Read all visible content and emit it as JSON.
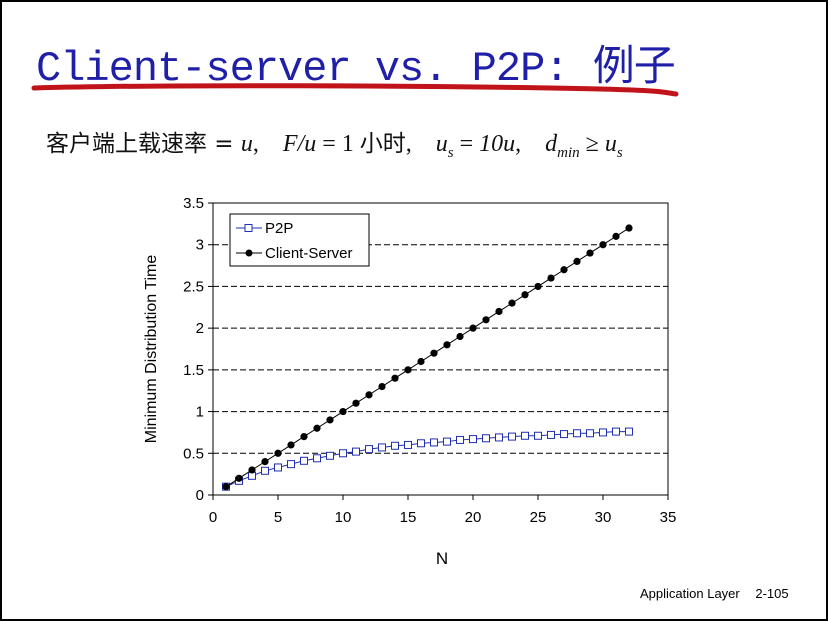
{
  "slide": {
    "title": "Client-server vs. P2P: 例子",
    "subtitle": {
      "t1": "客户端上载速率 = ",
      "u1": "u",
      "t2": ",",
      "f": "F/u",
      "t3": " = 1 ",
      "zh_hour": "小时",
      "t4": ",",
      "us": "u",
      "us_sub": "s",
      "t5": " = ",
      "tenu": "10u",
      "t6": ",",
      "d": "d",
      "d_sub": "min",
      "geq": " ≥ ",
      "us2": "u",
      "us2_sub": "s"
    },
    "footer": {
      "left": "Application Layer",
      "right": "2-105"
    },
    "colors": {
      "title": "#1f1fa8",
      "underline": "#c0141a",
      "p2p": "#1f2fb0",
      "cs": "#000000"
    }
  },
  "chart_data": {
    "type": "line",
    "xlabel": "N",
    "ylabel": "Minimum Distribution Time",
    "xlim": [
      0,
      35
    ],
    "ylim": [
      0,
      3.5
    ],
    "xticks": [
      "0",
      "5",
      "10",
      "15",
      "20",
      "25",
      "30",
      "35"
    ],
    "yticks": [
      "0",
      "0.5",
      "1",
      "1.5",
      "2",
      "2.5",
      "3",
      "3.5"
    ],
    "grid": "horizontal-dashed",
    "legend_position": "top-left",
    "x": [
      1,
      2,
      3,
      4,
      5,
      6,
      7,
      8,
      9,
      10,
      11,
      12,
      13,
      14,
      15,
      16,
      17,
      18,
      19,
      20,
      21,
      22,
      23,
      24,
      25,
      26,
      27,
      28,
      29,
      30,
      31,
      32
    ],
    "series": [
      {
        "name": "P2P",
        "marker": "square-open",
        "values": [
          0.1,
          0.17,
          0.23,
          0.29,
          0.33,
          0.37,
          0.41,
          0.44,
          0.47,
          0.5,
          0.52,
          0.55,
          0.57,
          0.59,
          0.6,
          0.62,
          0.63,
          0.64,
          0.66,
          0.67,
          0.68,
          0.69,
          0.7,
          0.71,
          0.71,
          0.72,
          0.73,
          0.74,
          0.74,
          0.75,
          0.76,
          0.76
        ]
      },
      {
        "name": "Client-Server",
        "marker": "circle-filled",
        "values": [
          0.1,
          0.2,
          0.3,
          0.4,
          0.5,
          0.6,
          0.7,
          0.8,
          0.9,
          1.0,
          1.1,
          1.2,
          1.3,
          1.4,
          1.5,
          1.6,
          1.7,
          1.8,
          1.9,
          2.0,
          2.1,
          2.2,
          2.3,
          2.4,
          2.5,
          2.6,
          2.7,
          2.8,
          2.9,
          3.0,
          3.1,
          3.2
        ]
      }
    ]
  }
}
